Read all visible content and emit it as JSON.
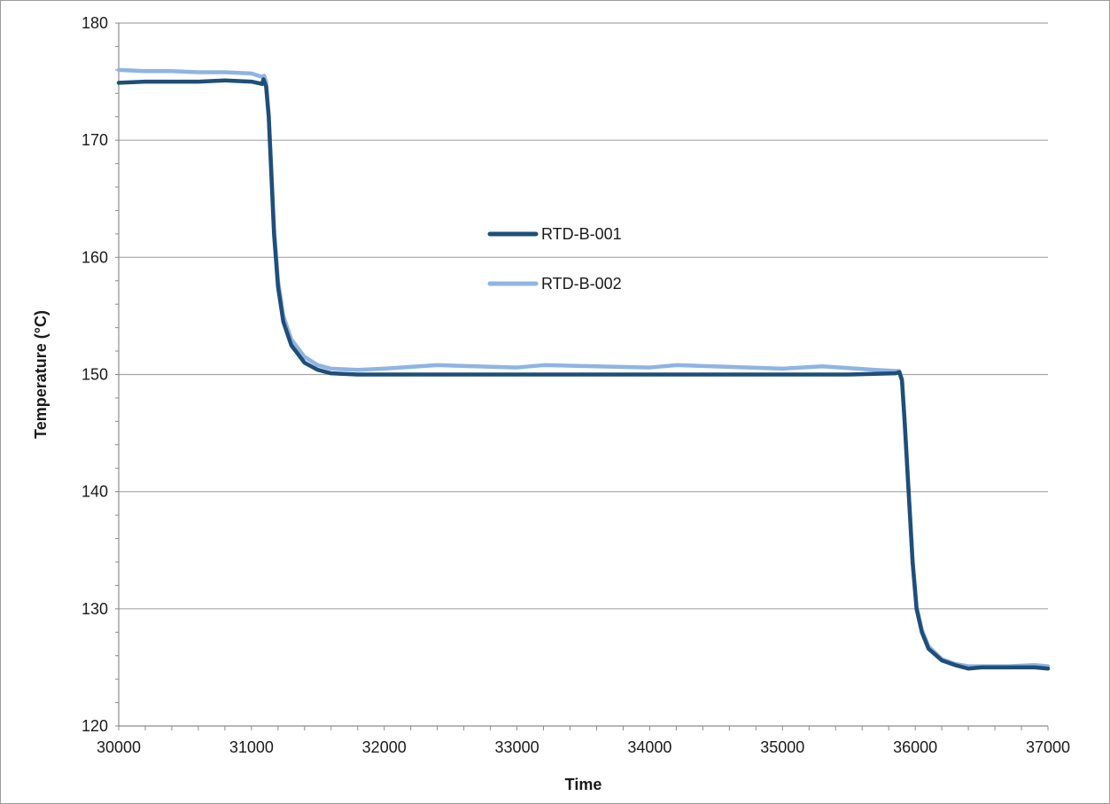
{
  "chart_data": {
    "type": "line",
    "title": "",
    "xlabel": "Time",
    "ylabel": "Temperature (°C)",
    "xlim": [
      30000,
      37000
    ],
    "ylim": [
      120,
      180
    ],
    "xticks": [
      30000,
      31000,
      32000,
      33000,
      34000,
      35000,
      36000,
      37000
    ],
    "yticks": [
      120,
      130,
      140,
      150,
      160,
      170,
      180
    ],
    "grid": "horizontal major gridlines",
    "legend_position": "center",
    "series": [
      {
        "name": "RTD-B-001",
        "color": "#1f4e79",
        "points": [
          [
            30000,
            174.9
          ],
          [
            30200,
            175.0
          ],
          [
            30400,
            175.0
          ],
          [
            30600,
            175.0
          ],
          [
            30800,
            175.1
          ],
          [
            31000,
            175.0
          ],
          [
            31080,
            174.8
          ],
          [
            31090,
            175.2
          ],
          [
            31110,
            174.6
          ],
          [
            31130,
            172.0
          ],
          [
            31150,
            167.0
          ],
          [
            31170,
            162.0
          ],
          [
            31200,
            157.5
          ],
          [
            31240,
            154.5
          ],
          [
            31300,
            152.5
          ],
          [
            31400,
            151.0
          ],
          [
            31500,
            150.4
          ],
          [
            31600,
            150.1
          ],
          [
            31800,
            150.0
          ],
          [
            32000,
            150.0
          ],
          [
            33000,
            150.0
          ],
          [
            34000,
            150.0
          ],
          [
            35000,
            150.0
          ],
          [
            35500,
            150.0
          ],
          [
            35850,
            150.1
          ],
          [
            35880,
            150.2
          ],
          [
            35900,
            149.5
          ],
          [
            35920,
            146.0
          ],
          [
            35950,
            140.0
          ],
          [
            35980,
            134.0
          ],
          [
            36010,
            130.0
          ],
          [
            36050,
            128.0
          ],
          [
            36100,
            126.6
          ],
          [
            36200,
            125.6
          ],
          [
            36300,
            125.2
          ],
          [
            36400,
            124.9
          ],
          [
            36500,
            125.0
          ],
          [
            36700,
            125.0
          ],
          [
            36900,
            125.0
          ],
          [
            37000,
            124.9
          ]
        ]
      },
      {
        "name": "RTD-B-002",
        "color": "#8fb4e3",
        "points": [
          [
            30000,
            176.0
          ],
          [
            30200,
            175.9
          ],
          [
            30400,
            175.9
          ],
          [
            30600,
            175.8
          ],
          [
            30800,
            175.8
          ],
          [
            31000,
            175.7
          ],
          [
            31080,
            175.4
          ],
          [
            31095,
            175.5
          ],
          [
            31110,
            175.0
          ],
          [
            31130,
            172.2
          ],
          [
            31150,
            167.5
          ],
          [
            31170,
            162.5
          ],
          [
            31200,
            158.0
          ],
          [
            31240,
            155.0
          ],
          [
            31300,
            153.0
          ],
          [
            31400,
            151.5
          ],
          [
            31500,
            150.8
          ],
          [
            31600,
            150.5
          ],
          [
            31800,
            150.4
          ],
          [
            32000,
            150.5
          ],
          [
            32400,
            150.8
          ],
          [
            33000,
            150.6
          ],
          [
            33200,
            150.8
          ],
          [
            34000,
            150.6
          ],
          [
            34200,
            150.8
          ],
          [
            35000,
            150.5
          ],
          [
            35300,
            150.7
          ],
          [
            35700,
            150.4
          ],
          [
            35850,
            150.3
          ],
          [
            35880,
            150.3
          ],
          [
            35900,
            149.6
          ],
          [
            35920,
            146.2
          ],
          [
            35950,
            140.2
          ],
          [
            35980,
            134.2
          ],
          [
            36010,
            130.2
          ],
          [
            36050,
            128.2
          ],
          [
            36100,
            126.8
          ],
          [
            36200,
            125.7
          ],
          [
            36300,
            125.3
          ],
          [
            36400,
            125.1
          ],
          [
            36500,
            125.1
          ],
          [
            36700,
            125.1
          ],
          [
            36900,
            125.2
          ],
          [
            37000,
            125.1
          ]
        ]
      }
    ]
  }
}
